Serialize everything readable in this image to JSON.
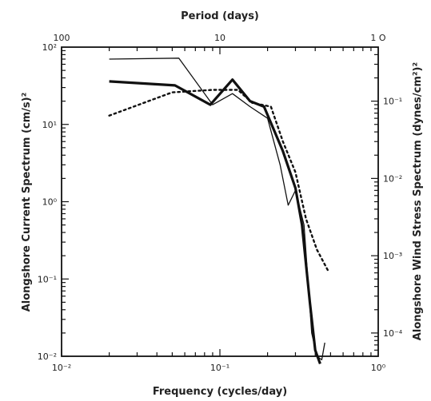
{
  "chart_data": {
    "type": "line",
    "title": "",
    "xlabel": "Frequency (cycles/day)",
    "top_xlabel": "Period (days)",
    "ylabel": "Alongshore Current Spectrum (cm/s)²",
    "right_ylabel": "Alongshore Wind Stress Spectrum (dynes/cm²)²",
    "x_scale": "log",
    "y_scale": "log",
    "xlim": [
      0.01,
      1
    ],
    "ylim": [
      0.01,
      100
    ],
    "right_ylim": [
      5e-05,
      0.5
    ],
    "grid": false,
    "x_ticks": [
      {
        "value": 0.01,
        "label": "10⁻²"
      },
      {
        "value": 0.1,
        "label": "10⁻¹"
      },
      {
        "value": 1,
        "label": "10⁰"
      }
    ],
    "y_ticks": [
      {
        "value": 100,
        "label": "10²"
      },
      {
        "value": 10,
        "label": "10¹"
      },
      {
        "value": 1,
        "label": "10⁰"
      },
      {
        "value": 0.1,
        "label": "10⁻¹"
      },
      {
        "value": 0.01,
        "label": "10⁻²"
      }
    ],
    "top_ticks": [
      {
        "period": 100,
        "label": "100"
      },
      {
        "period": 10,
        "label": "10"
      },
      {
        "period": 1,
        "label": "1 O"
      }
    ],
    "right_ticks": [
      {
        "value": 0.1,
        "label": "10⁻¹"
      },
      {
        "value": 0.01,
        "label": "10⁻²"
      },
      {
        "value": 0.001,
        "label": "10⁻³"
      },
      {
        "value": 0.0001,
        "label": "10⁻⁴"
      }
    ],
    "series": [
      {
        "style": "thick",
        "x": [
          0.02,
          0.052,
          0.087,
          0.12,
          0.155,
          0.19,
          0.25,
          0.3,
          0.33,
          0.37,
          0.4,
          0.43
        ],
        "y": [
          36,
          32,
          18,
          38,
          20,
          17,
          4.5,
          1.5,
          0.5,
          0.05,
          0.012,
          0.008
        ]
      },
      {
        "style": "thin",
        "x": [
          0.02,
          0.055,
          0.09,
          0.12,
          0.155,
          0.2,
          0.24,
          0.27,
          0.3,
          0.34,
          0.38,
          0.41,
          0.44,
          0.46
        ],
        "y": [
          70,
          72,
          18,
          25,
          17,
          12,
          3,
          0.9,
          1.4,
          0.5,
          0.02,
          0.01,
          0.009,
          0.015
        ]
      },
      {
        "style": "dotted",
        "axis": "right",
        "x": [
          0.02,
          0.05,
          0.09,
          0.13,
          0.16,
          0.21,
          0.25,
          0.3,
          0.35,
          0.41,
          0.48
        ],
        "y": [
          0.065,
          0.13,
          0.14,
          0.14,
          0.095,
          0.085,
          0.03,
          0.012,
          0.003,
          0.0012,
          0.00065
        ]
      }
    ],
    "colors": {
      "line": "#111111",
      "background": "#ffffff"
    }
  }
}
